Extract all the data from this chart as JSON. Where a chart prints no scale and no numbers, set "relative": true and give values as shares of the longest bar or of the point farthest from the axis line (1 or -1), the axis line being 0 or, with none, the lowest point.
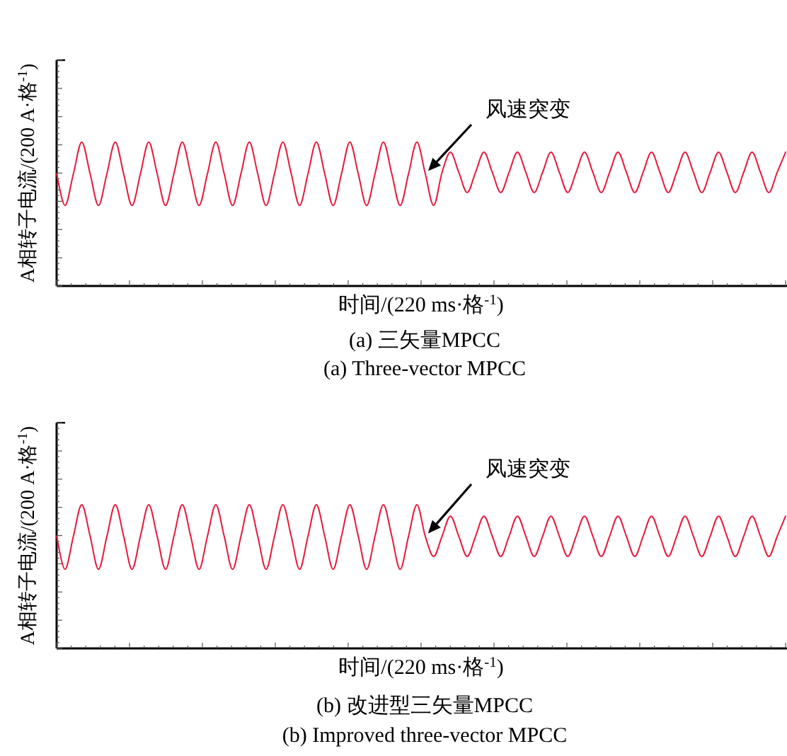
{
  "chart_data": [
    {
      "type": "line",
      "title": "(a) 三矢量MPCC",
      "subtitle": "(a) Three-vector MPCC",
      "xlabel": "时间/(220 ms·格$^{-1}$)",
      "ylabel": "A相转子电流/(200 A·格$^{-1}$)",
      "annotations": [
        "风速突变"
      ],
      "relative": true,
      "grid": false,
      "marker": "none",
      "line_style": "solid",
      "categories": [
        null,
        null,
        null,
        null,
        null,
        null,
        null,
        null,
        null,
        null,
        null,
        null,
        null,
        null,
        null,
        null,
        null,
        null,
        null,
        null,
        null,
        null,
        null,
        null,
        null,
        null,
        null,
        null,
        null,
        null,
        null,
        null,
        null,
        null,
        null,
        null,
        null,
        null,
        null,
        null,
        null,
        null,
        null,
        null,
        null,
        null,
        null,
        null,
        null,
        null,
        null,
        null,
        null,
        null,
        null,
        null,
        null,
        null,
        null,
        null,
        null,
        null,
        null,
        null,
        null,
        null,
        null,
        null,
        null,
        null,
        null,
        null,
        null,
        null,
        null,
        null,
        null,
        null,
        null,
        null,
        null,
        null,
        null,
        null,
        null,
        null,
        null,
        null
      ],
      "series": [
        {
          "color": "#e8193c",
          "values": [
            0.78,
            0.56,
            0.78,
            1,
            0.78,
            0.56,
            0.78,
            1,
            0.78,
            0.56,
            0.78,
            1,
            0.78,
            0.56,
            0.78,
            1,
            0.78,
            0.56,
            0.78,
            1,
            0.78,
            0.56,
            0.78,
            1,
            0.78,
            0.56,
            0.78,
            1,
            0.78,
            0.56,
            0.78,
            1,
            0.78,
            0.56,
            0.78,
            1,
            0.78,
            0.56,
            0.78,
            1,
            0.78,
            0.56,
            0.78,
            1,
            0.78,
            0.56,
            0.79,
            0.93,
            0.79,
            0.65,
            0.79,
            0.93,
            0.79,
            0.65,
            0.79,
            0.93,
            0.79,
            0.65,
            0.79,
            0.93,
            0.79,
            0.65,
            0.79,
            0.93,
            0.79,
            0.65,
            0.79,
            0.93,
            0.79,
            0.65,
            0.79,
            0.93,
            0.79,
            0.65,
            0.79,
            0.93,
            0.79,
            0.65,
            0.79,
            0.93,
            0.79,
            0.65,
            0.79,
            0.93,
            0.79,
            0.65,
            0.79,
            0.93
          ]
        }
      ]
    },
    {
      "type": "line",
      "title": "(b) 改进型三矢量MPCC",
      "subtitle": "(b) Improved three-vector MPCC",
      "xlabel": "时间/(220 ms·格$^{-1}$)",
      "ylabel": "A相转子电流/(200 A·格$^{-1}$)",
      "annotations": [
        "风速突变"
      ],
      "relative": true,
      "grid": false,
      "marker": "none",
      "line_style": "solid",
      "categories": [
        null,
        null,
        null,
        null,
        null,
        null,
        null,
        null,
        null,
        null,
        null,
        null,
        null,
        null,
        null,
        null,
        null,
        null,
        null,
        null,
        null,
        null,
        null,
        null,
        null,
        null,
        null,
        null,
        null,
        null,
        null,
        null,
        null,
        null,
        null,
        null,
        null,
        null,
        null,
        null,
        null,
        null,
        null,
        null,
        null,
        null,
        null,
        null,
        null,
        null,
        null,
        null,
        null,
        null,
        null,
        null,
        null,
        null,
        null,
        null,
        null,
        null,
        null,
        null,
        null,
        null,
        null,
        null,
        null,
        null,
        null,
        null,
        null,
        null,
        null,
        null,
        null,
        null,
        null,
        null,
        null,
        null,
        null,
        null,
        null,
        null,
        null,
        null
      ],
      "series": [
        {
          "color": "#e8193c",
          "values": [
            0.78,
            0.55,
            0.78,
            1,
            0.78,
            0.55,
            0.78,
            1,
            0.78,
            0.55,
            0.78,
            1,
            0.78,
            0.55,
            0.78,
            1,
            0.78,
            0.55,
            0.78,
            1,
            0.78,
            0.55,
            0.78,
            1,
            0.78,
            0.55,
            0.78,
            1,
            0.78,
            0.55,
            0.78,
            1,
            0.78,
            0.55,
            0.78,
            1,
            0.78,
            0.55,
            0.78,
            1,
            0.78,
            0.55,
            0.78,
            1,
            0.78,
            0.64,
            0.78,
            0.92,
            0.78,
            0.64,
            0.78,
            0.92,
            0.78,
            0.64,
            0.78,
            0.92,
            0.78,
            0.64,
            0.78,
            0.92,
            0.78,
            0.64,
            0.78,
            0.92,
            0.78,
            0.64,
            0.78,
            0.92,
            0.78,
            0.64,
            0.78,
            0.92,
            0.78,
            0.64,
            0.78,
            0.92,
            0.78,
            0.64,
            0.78,
            0.92,
            0.78,
            0.64,
            0.78,
            0.92,
            0.78,
            0.64,
            0.78,
            0.92
          ]
        }
      ]
    }
  ]
}
